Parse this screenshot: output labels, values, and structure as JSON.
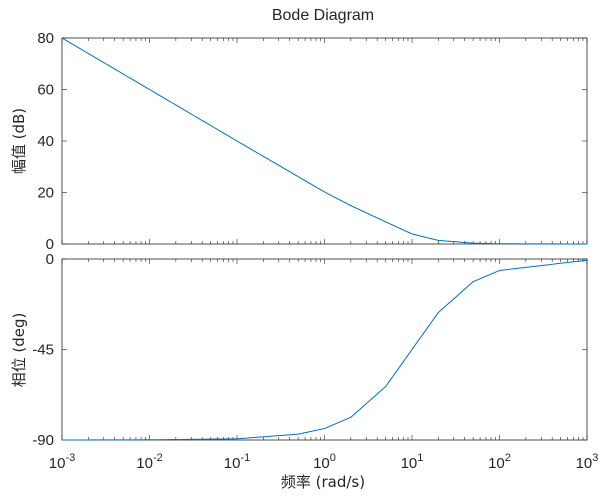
{
  "chart_data": {
    "type": "line",
    "title": "Bode Diagram",
    "xlabel": "频率  (rad/s)",
    "x_scale": "log",
    "xlim": [
      0.001,
      1000
    ],
    "x_tick_labels": [
      {
        "base": "10",
        "exp": "-3"
      },
      {
        "base": "10",
        "exp": "-2"
      },
      {
        "base": "10",
        "exp": "-1"
      },
      {
        "base": "10",
        "exp": "0"
      },
      {
        "base": "10",
        "exp": "1"
      },
      {
        "base": "10",
        "exp": "2"
      },
      {
        "base": "10",
        "exp": "3"
      }
    ],
    "line_color": "#0072bd",
    "magnitude": {
      "ylabel": "幅值 (dB)",
      "ylim": [
        0,
        80
      ],
      "yticks": [
        "0",
        "20",
        "40",
        "60",
        "80"
      ],
      "x": [
        0.001,
        0.01,
        0.1,
        1,
        2,
        5,
        10,
        20,
        50,
        100,
        1000
      ],
      "y": [
        80,
        60,
        40,
        20.2,
        14.9,
        8.6,
        3.9,
        1.4,
        0.33,
        0.09,
        0
      ]
    },
    "phase": {
      "ylabel": "相位 (deg)",
      "ylim": [
        -90,
        0
      ],
      "yticks": [
        "0",
        "-45",
        "-90"
      ],
      "x": [
        0.001,
        0.01,
        0.1,
        0.5,
        1,
        2,
        5,
        10,
        20,
        50,
        100,
        1000
      ],
      "y": [
        -90,
        -89.9,
        -89.4,
        -87.1,
        -84.3,
        -78.7,
        -63.4,
        -45,
        -26.6,
        -11.3,
        -5.7,
        -0.6
      ]
    }
  }
}
